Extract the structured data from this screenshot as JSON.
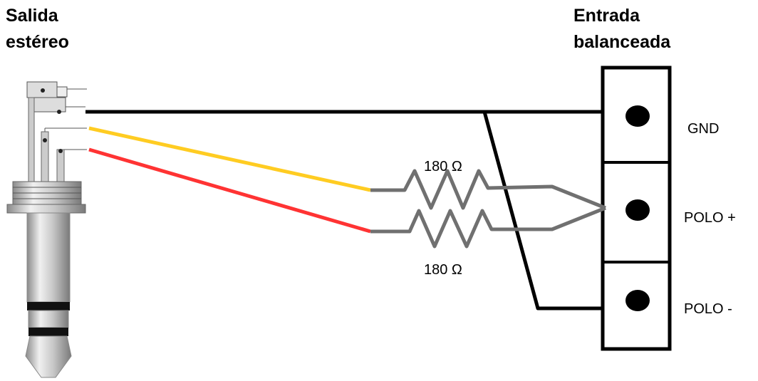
{
  "left_label": {
    "lines": [
      "Salida",
      "estéreo"
    ]
  },
  "right_label": {
    "lines": [
      "Entrada",
      "balanceada"
    ]
  },
  "resistors": [
    {
      "label": "180 Ω"
    },
    {
      "label": "180 Ω"
    }
  ],
  "terminals": [
    {
      "label": "GND"
    },
    {
      "label": "POLO +"
    },
    {
      "label": "POLO -"
    }
  ]
}
